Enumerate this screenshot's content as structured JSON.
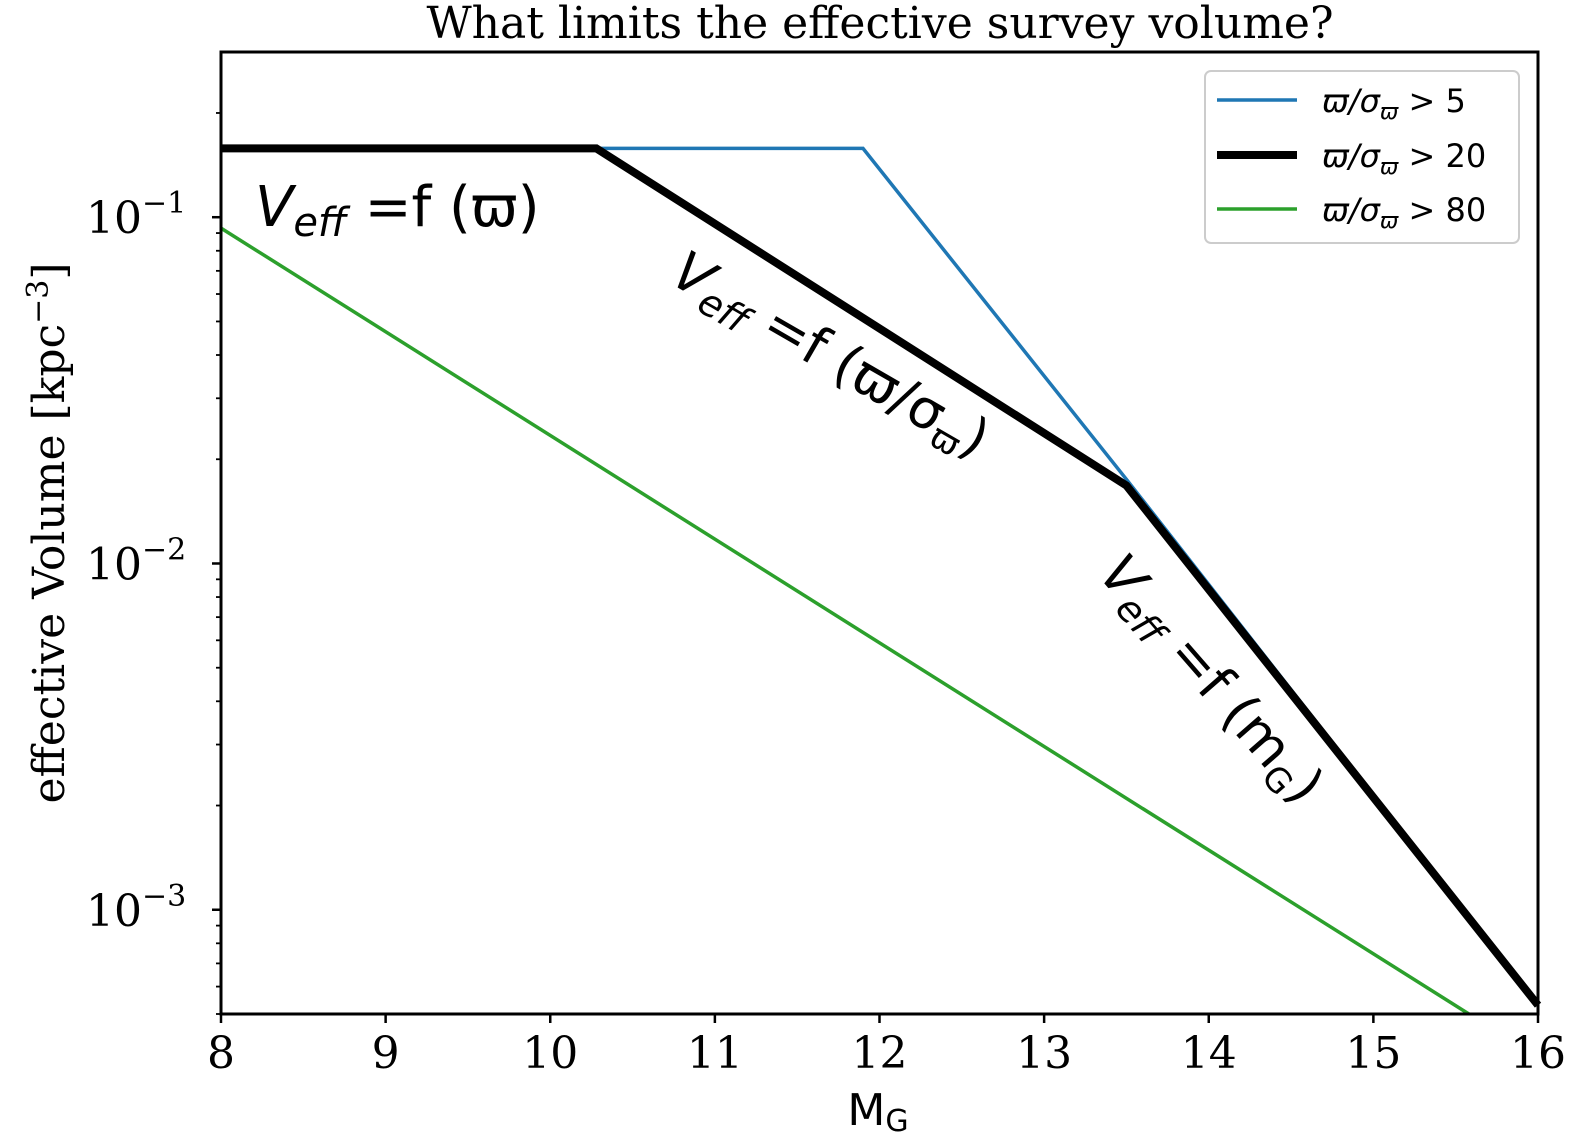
{
  "chart_data": {
    "type": "line",
    "title": "What limits the effective survey volume?",
    "xlabel_main": "M",
    "xlabel_sub": "G",
    "ylabel_main": "effective Volume [kpc",
    "ylabel_sup": "−3",
    "ylabel_close": "]",
    "xlim": [
      8,
      16
    ],
    "ylim": [
      0.0005,
      0.3
    ],
    "yscale": "log",
    "legend_position": "top-right",
    "x_ticks": [
      {
        "value": 8,
        "label": "8"
      },
      {
        "value": 9,
        "label": "9"
      },
      {
        "value": 10,
        "label": "10"
      },
      {
        "value": 11,
        "label": "11"
      },
      {
        "value": 12,
        "label": "12"
      },
      {
        "value": 13,
        "label": "13"
      },
      {
        "value": 14,
        "label": "14"
      },
      {
        "value": 15,
        "label": "15"
      },
      {
        "value": 16,
        "label": "16"
      }
    ],
    "y_ticks": [
      {
        "value": 0.1,
        "base": "10",
        "exp": "−1"
      },
      {
        "value": 0.01,
        "base": "10",
        "exp": "−2"
      },
      {
        "value": 0.001,
        "base": "10",
        "exp": "−3"
      }
    ],
    "series": [
      {
        "name": "ϖ/σϖ > 5",
        "legend_main": "ϖ/σ",
        "legend_sub": "ϖ",
        "legend_rest": " > 5",
        "color": "#1f77b4",
        "style": "thin",
        "x": [
          8.0,
          11.9,
          13.5,
          16.0
        ],
        "y": [
          0.158,
          0.158,
          0.0175,
          0.00053
        ]
      },
      {
        "name": "ϖ/σϖ > 20",
        "legend_main": "ϖ/σ",
        "legend_sub": "ϖ",
        "legend_rest": " > 20",
        "color": "#000000",
        "style": "thick",
        "x": [
          8.0,
          10.28,
          13.5,
          16.0
        ],
        "y": [
          0.158,
          0.158,
          0.0168,
          0.00053
        ]
      },
      {
        "name": "ϖ/σϖ > 80",
        "legend_main": "ϖ/σ",
        "legend_sub": "ϖ",
        "legend_rest": " > 80",
        "color": "#2ca02c",
        "style": "thin",
        "x": [
          8.0,
          15.58
        ],
        "y": [
          0.093,
          0.0005
        ]
      }
    ],
    "annotations": [
      {
        "id": "a1",
        "main": "V",
        "sub": "eff",
        "rest": " =f (ϖ)"
      },
      {
        "id": "a2",
        "main": "V",
        "sub": "eff",
        "rest": " =f (ϖ/σ",
        "sub2": "ϖ",
        "close": ")"
      },
      {
        "id": "a3",
        "main": "V",
        "sub": "eff",
        "rest": " =f (m",
        "sub2": "G",
        "close": ")"
      }
    ]
  }
}
